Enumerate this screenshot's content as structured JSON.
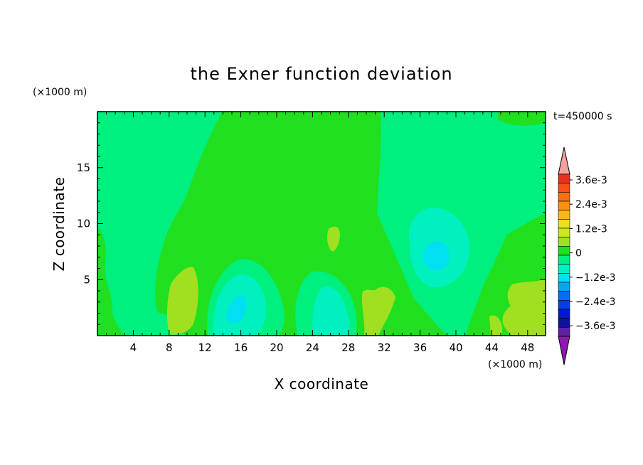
{
  "chart_data": {
    "type": "heatmap",
    "title": "the Exner function deviation",
    "time_label": "t=450000 s",
    "xlabel": "X coordinate",
    "ylabel": "Z coordinate",
    "x_unit": "(×1000 m)",
    "y_unit": "(×1000 m)",
    "xlim": [
      0,
      50
    ],
    "ylim": [
      0,
      20
    ],
    "x_ticks": [
      4,
      8,
      12,
      16,
      20,
      24,
      28,
      32,
      36,
      40,
      44,
      48
    ],
    "y_ticks": [
      5,
      10,
      15
    ],
    "colorbar": {
      "tick_labels": [
        {
          "value": 0.0036,
          "label": "3.6e-3"
        },
        {
          "value": 0.0024,
          "label": "2.4e-3"
        },
        {
          "value": 0.0012,
          "label": "1.2e-3"
        },
        {
          "value": 0,
          "label": "0"
        },
        {
          "value": -0.0012,
          "label": "−1.2e-3"
        },
        {
          "value": -0.0024,
          "label": "−2.4e-3"
        },
        {
          "value": -0.0036,
          "label": "−3.6e-3"
        }
      ],
      "colors_top_to_bottom": [
        "#f5a0a0",
        "#e83020",
        "#f85018",
        "#f87010",
        "#f89010",
        "#f8b818",
        "#e8e020",
        "#c8e820",
        "#a0e020",
        "#20e020",
        "#00f080",
        "#00f0c0",
        "#00e0f0",
        "#00a8f0",
        "#0070f0",
        "#0040e8",
        "#0018d0",
        "#1010a0",
        "#6020a0",
        "#9018b0"
      ]
    },
    "field_colors": {
      "zero_band": "#20e020",
      "slightly_negative": "#00f080",
      "negative": "#00f0c0",
      "more_negative": "#00e0f0",
      "slightly_positive": "#a0e020"
    }
  }
}
